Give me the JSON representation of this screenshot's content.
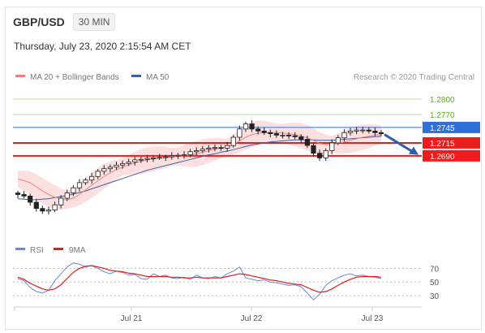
{
  "header": {
    "symbol": "GBP/USD",
    "timeframe": "30 MIN"
  },
  "timestamp": "Thursday, July 23, 2020 2:15:54 AM CET",
  "legend": {
    "ma20_bb": "MA 20 + Bollinger Bands",
    "ma50": "MA 50",
    "source": "Research © 2020 Trading Central"
  },
  "rsi_legend": {
    "rsi": "RSI",
    "ma9": "9MA"
  },
  "colors": {
    "green": "#5aaa1e",
    "green_line": "#b8dca0",
    "red": "#ee1c1c",
    "blue_tag": "#2f6fd9",
    "ma50": "#3a5fa8",
    "bollinger_fill": "#fbd6d6",
    "candle": "#222222",
    "arrow": "#2e5fa6",
    "rsi_line": "#6688dd",
    "rsi_ma": "#e21b1b"
  },
  "chart_data": [
    {
      "type": "line",
      "title": "GBP/USD 30 MIN",
      "series": [
        {
          "name": "GBP/USD",
          "values": [
            1.2615,
            1.2612,
            1.26,
            1.2588,
            1.2583,
            1.2585,
            1.2595,
            1.2608,
            1.2618,
            1.2628,
            1.2638,
            1.2643,
            1.265,
            1.266,
            1.2665,
            1.2668,
            1.2672,
            1.2675,
            1.2678,
            1.2682,
            1.2683,
            1.2685,
            1.2686,
            1.2687,
            1.2688,
            1.269,
            1.2691,
            1.2692,
            1.2698,
            1.27,
            1.2703,
            1.2705,
            1.2706,
            1.2705,
            1.271,
            1.2726,
            1.2742,
            1.2752,
            1.2742,
            1.2738,
            1.2735,
            1.2733,
            1.273,
            1.273,
            1.2729,
            1.2727,
            1.2722,
            1.271,
            1.2695,
            1.2686,
            1.27,
            1.2715,
            1.2725,
            1.2735,
            1.2738,
            1.274,
            1.274,
            1.2738,
            1.2735,
            1.2733
          ]
        },
        {
          "name": "MA 20",
          "values": [
            1.2645,
            1.2642,
            1.2638,
            1.263,
            1.2622,
            1.2615,
            1.261,
            1.2606,
            1.2605,
            1.2608,
            1.2615,
            1.2624,
            1.2633,
            1.2642,
            1.265,
            1.2657,
            1.2663,
            1.2668,
            1.2672,
            1.2676,
            1.2679,
            1.2682,
            1.2684,
            1.2686,
            1.2687,
            1.2688,
            1.2689,
            1.269,
            1.2692,
            1.2694,
            1.2697,
            1.27,
            1.2703,
            1.2705,
            1.2707,
            1.2712,
            1.2719,
            1.2726,
            1.2731,
            1.2734,
            1.2735,
            1.2735,
            1.2735,
            1.2734,
            1.2733,
            1.2731,
            1.2729,
            1.2725,
            1.272,
            1.2714,
            1.2712,
            1.2712,
            1.2714,
            1.2717,
            1.272,
            1.2723,
            1.2726,
            1.2728,
            1.273,
            1.2731
          ]
        },
        {
          "name": "MA 50",
          "values": [
            1.2607,
            1.2606,
            1.2605,
            1.2605,
            1.2606,
            1.2607,
            1.2609,
            1.2611,
            1.2613,
            1.2616,
            1.2619,
            1.2622,
            1.2626,
            1.263,
            1.2634,
            1.2638,
            1.2642,
            1.2646,
            1.265,
            1.2654,
            1.2658,
            1.2662,
            1.2665,
            1.2668,
            1.2671,
            1.2674,
            1.2677,
            1.268,
            1.2683,
            1.2686,
            1.2689,
            1.2692,
            1.2694,
            1.2697,
            1.2699,
            1.2702,
            1.2705,
            1.2708,
            1.2711,
            1.2713,
            1.2715,
            1.2717,
            1.2718,
            1.2719,
            1.272,
            1.2721,
            1.2721,
            1.2721,
            1.2721,
            1.272,
            1.272,
            1.272,
            1.2721,
            1.2722,
            1.2723,
            1.2724,
            1.2725,
            1.2726,
            1.2727,
            1.2728
          ]
        }
      ],
      "levels": [
        {
          "value": 1.28,
          "label": "1.2800",
          "kind": "resistance"
        },
        {
          "value": 1.277,
          "label": "1.2770",
          "kind": "resistance"
        },
        {
          "value": 1.2745,
          "label": "1.2745",
          "kind": "pivot"
        },
        {
          "value": 1.2715,
          "label": "1.2715",
          "kind": "support"
        },
        {
          "value": 1.269,
          "label": "1.2690",
          "kind": "support"
        }
      ],
      "x_tick_labels": [
        "Jul 21",
        "Jul 22",
        "Jul 23"
      ],
      "ylim": [
        1.2567,
        1.2822
      ],
      "legend_position": "top-left",
      "grid": false
    },
    {
      "type": "line",
      "series": [
        {
          "name": "RSI",
          "values": [
            55,
            52,
            42,
            36,
            34,
            38,
            52,
            62,
            72,
            78,
            76,
            72,
            74,
            70,
            65,
            62,
            66,
            64,
            60,
            61,
            55,
            54,
            62,
            58,
            60,
            56,
            55,
            57,
            54,
            60,
            56,
            55,
            58,
            56,
            62,
            66,
            72,
            56,
            54,
            52,
            53,
            50,
            49,
            47,
            45,
            46,
            43,
            34,
            24,
            32,
            45,
            52,
            56,
            60,
            62,
            59,
            60,
            58,
            57,
            55
          ]
        },
        {
          "name": "9MA",
          "values": [
            57,
            54,
            48,
            44,
            40,
            38,
            40,
            46,
            55,
            64,
            70,
            73,
            74,
            72,
            70,
            67,
            66,
            65,
            63,
            62,
            60,
            58,
            58,
            58,
            58,
            57,
            57,
            56,
            56,
            57,
            56,
            56,
            56,
            56,
            58,
            60,
            62,
            61,
            59,
            57,
            55,
            53,
            52,
            50,
            48,
            47,
            46,
            42,
            38,
            35,
            36,
            40,
            45,
            50,
            54,
            57,
            58,
            58,
            58,
            57
          ]
        }
      ],
      "y_tick_labels": [
        "70",
        "50",
        "30"
      ],
      "ylim": [
        17,
        80
      ],
      "reference_lines": [
        70,
        50,
        30
      ]
    }
  ]
}
